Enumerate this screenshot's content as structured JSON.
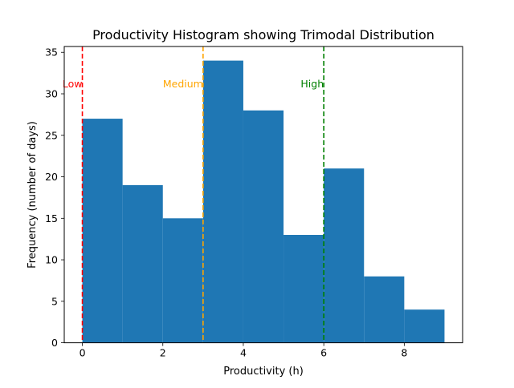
{
  "chart_data": {
    "type": "bar",
    "title": "Productivity Histogram showing Trimodal Distribution",
    "xlabel": "Productivity (h)",
    "ylabel": "Frequency (number of days)",
    "xlim": [
      -0.45,
      9.45
    ],
    "ylim": [
      0,
      35.7
    ],
    "xticks": [
      0,
      2,
      4,
      6,
      8
    ],
    "yticks": [
      0,
      5,
      10,
      15,
      20,
      25,
      30,
      35
    ],
    "bin_edges": [
      0,
      1,
      2,
      3,
      4,
      5,
      6,
      7,
      8,
      9
    ],
    "values": [
      27,
      19,
      15,
      34,
      28,
      13,
      21,
      8,
      4
    ],
    "bar_color": "#1f77b4",
    "vlines": [
      {
        "x": 0,
        "label": "Low",
        "color": "#ff0000"
      },
      {
        "x": 3,
        "label": "Medium",
        "color": "#ffa500"
      },
      {
        "x": 6,
        "label": "High",
        "color": "#008000"
      }
    ],
    "vline_label_y": 31.2
  }
}
